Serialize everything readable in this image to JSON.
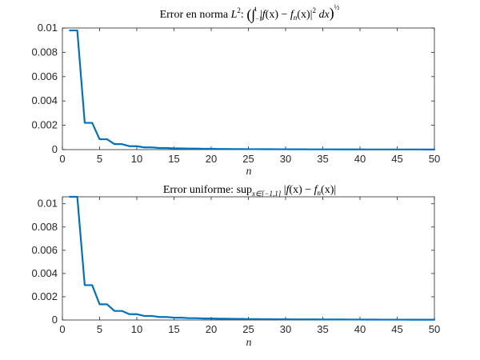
{
  "chart_data": [
    {
      "type": "line",
      "title": "Error en norma L²: (∫₋₁¹ |f(x) − fₙ(x)|² dx)^½",
      "title_parts": {
        "prefix": "Error en norma ",
        "L": "L",
        "sup2": "2",
        "colon": ": ",
        "integral": "(∫",
        "lower": "−1",
        "upper": "1",
        "body_1": " |",
        "f": "f",
        "paren_x_1": "(x) − ",
        "fn": "f",
        "sub_n": "n",
        "paren_x_2": "(x)|",
        "sup_2b": "2",
        "dx": " dx",
        "close": ")",
        "half": "½"
      },
      "xlabel": "n",
      "ylabel": "",
      "xlim": [
        0,
        50
      ],
      "ylim": [
        0,
        0.01
      ],
      "xticks": [
        0,
        5,
        10,
        15,
        20,
        25,
        30,
        35,
        40,
        45,
        50
      ],
      "xtick_labels": [
        "0",
        "5",
        "10",
        "15",
        "20",
        "25",
        "30",
        "35",
        "40",
        "45",
        "50"
      ],
      "yticks": [
        0,
        0.002,
        0.004,
        0.006,
        0.008,
        0.01
      ],
      "ytick_labels": [
        "0",
        "0.002",
        "0.004",
        "0.006",
        "0.008",
        "0.01"
      ],
      "grid": false,
      "color": "#0072BD",
      "series": [
        {
          "x": [
            1,
            2,
            3,
            4,
            5,
            6,
            7,
            8,
            9,
            10,
            11,
            12,
            13,
            14,
            15,
            16,
            17,
            18,
            19,
            20,
            21,
            22,
            23,
            24,
            25,
            26,
            27,
            28,
            29,
            30,
            31,
            32,
            33,
            34,
            35,
            36,
            37,
            38,
            39,
            40,
            41,
            42,
            43,
            44,
            45,
            46,
            47,
            48,
            49,
            50
          ],
          "y": [
            0.0098,
            0.0098,
            0.0022,
            0.0022,
            0.00085,
            0.00085,
            0.00045,
            0.00045,
            0.00028,
            0.00028,
            0.00018,
            0.00018,
            0.00013,
            0.00013,
            0.0001,
            0.0001,
            8e-05,
            8e-05,
            6.5e-05,
            6.5e-05,
            5.4e-05,
            5.4e-05,
            4.5e-05,
            4.5e-05,
            3.8e-05,
            3.8e-05,
            3.3e-05,
            3.3e-05,
            2.9e-05,
            2.9e-05,
            2.5e-05,
            2.5e-05,
            2.2e-05,
            2.2e-05,
            2e-05,
            2e-05,
            1.8e-05,
            1.8e-05,
            1.6e-05,
            1.6e-05,
            1.4e-05,
            1.4e-05,
            1.3e-05,
            1.3e-05,
            1.2e-05,
            1.2e-05,
            1.1e-05,
            1.1e-05,
            1e-05,
            1e-05
          ]
        }
      ]
    },
    {
      "type": "line",
      "title": "Error uniforme: sup_{x∈[−1,1]} |f(x) − fₙ(x)|",
      "title_parts": {
        "prefix": "Error uniforme: ",
        "sup": "sup",
        "sub_set": "x∈[−1,1]",
        "body_1": " |",
        "f": "f",
        "paren_x_1": "(x) − ",
        "fn": "f",
        "sub_n": "n",
        "paren_x_2": "(x)|"
      },
      "xlabel": "n",
      "ylabel": "",
      "xlim": [
        0,
        50
      ],
      "ylim": [
        0,
        0.0106
      ],
      "xticks": [
        0,
        5,
        10,
        15,
        20,
        25,
        30,
        35,
        40,
        45,
        50
      ],
      "xtick_labels": [
        "0",
        "5",
        "10",
        "15",
        "20",
        "25",
        "30",
        "35",
        "40",
        "45",
        "50"
      ],
      "yticks": [
        0,
        0.002,
        0.004,
        0.006,
        0.008,
        0.01
      ],
      "ytick_labels": [
        "0",
        "0.002",
        "0.004",
        "0.006",
        "0.008",
        "0.01"
      ],
      "grid": false,
      "color": "#0072BD",
      "series": [
        {
          "x": [
            1,
            2,
            3,
            4,
            5,
            6,
            7,
            8,
            9,
            10,
            11,
            12,
            13,
            14,
            15,
            16,
            17,
            18,
            19,
            20,
            21,
            22,
            23,
            24,
            25,
            26,
            27,
            28,
            29,
            30,
            31,
            32,
            33,
            34,
            35,
            36,
            37,
            38,
            39,
            40,
            41,
            42,
            43,
            44,
            45,
            46,
            47,
            48,
            49,
            50
          ],
          "y": [
            0.0107,
            0.0107,
            0.003,
            0.003,
            0.00135,
            0.00135,
            0.00078,
            0.00078,
            0.0005,
            0.0005,
            0.00035,
            0.00035,
            0.00026,
            0.00026,
            0.0002,
            0.0002,
            0.00016,
            0.00016,
            0.00013,
            0.00013,
            0.00011,
            0.00011,
            9.5e-05,
            9.5e-05,
            8.2e-05,
            8.2e-05,
            7.2e-05,
            7.2e-05,
            6.3e-05,
            6.3e-05,
            5.6e-05,
            5.6e-05,
            5e-05,
            5e-05,
            4.5e-05,
            4.5e-05,
            4.1e-05,
            4.1e-05,
            3.7e-05,
            3.7e-05,
            3.4e-05,
            3.4e-05,
            3.1e-05,
            3.1e-05,
            2.9e-05,
            2.9e-05,
            2.7e-05,
            2.7e-05,
            2.5e-05,
            2.5e-05
          ]
        }
      ]
    }
  ]
}
